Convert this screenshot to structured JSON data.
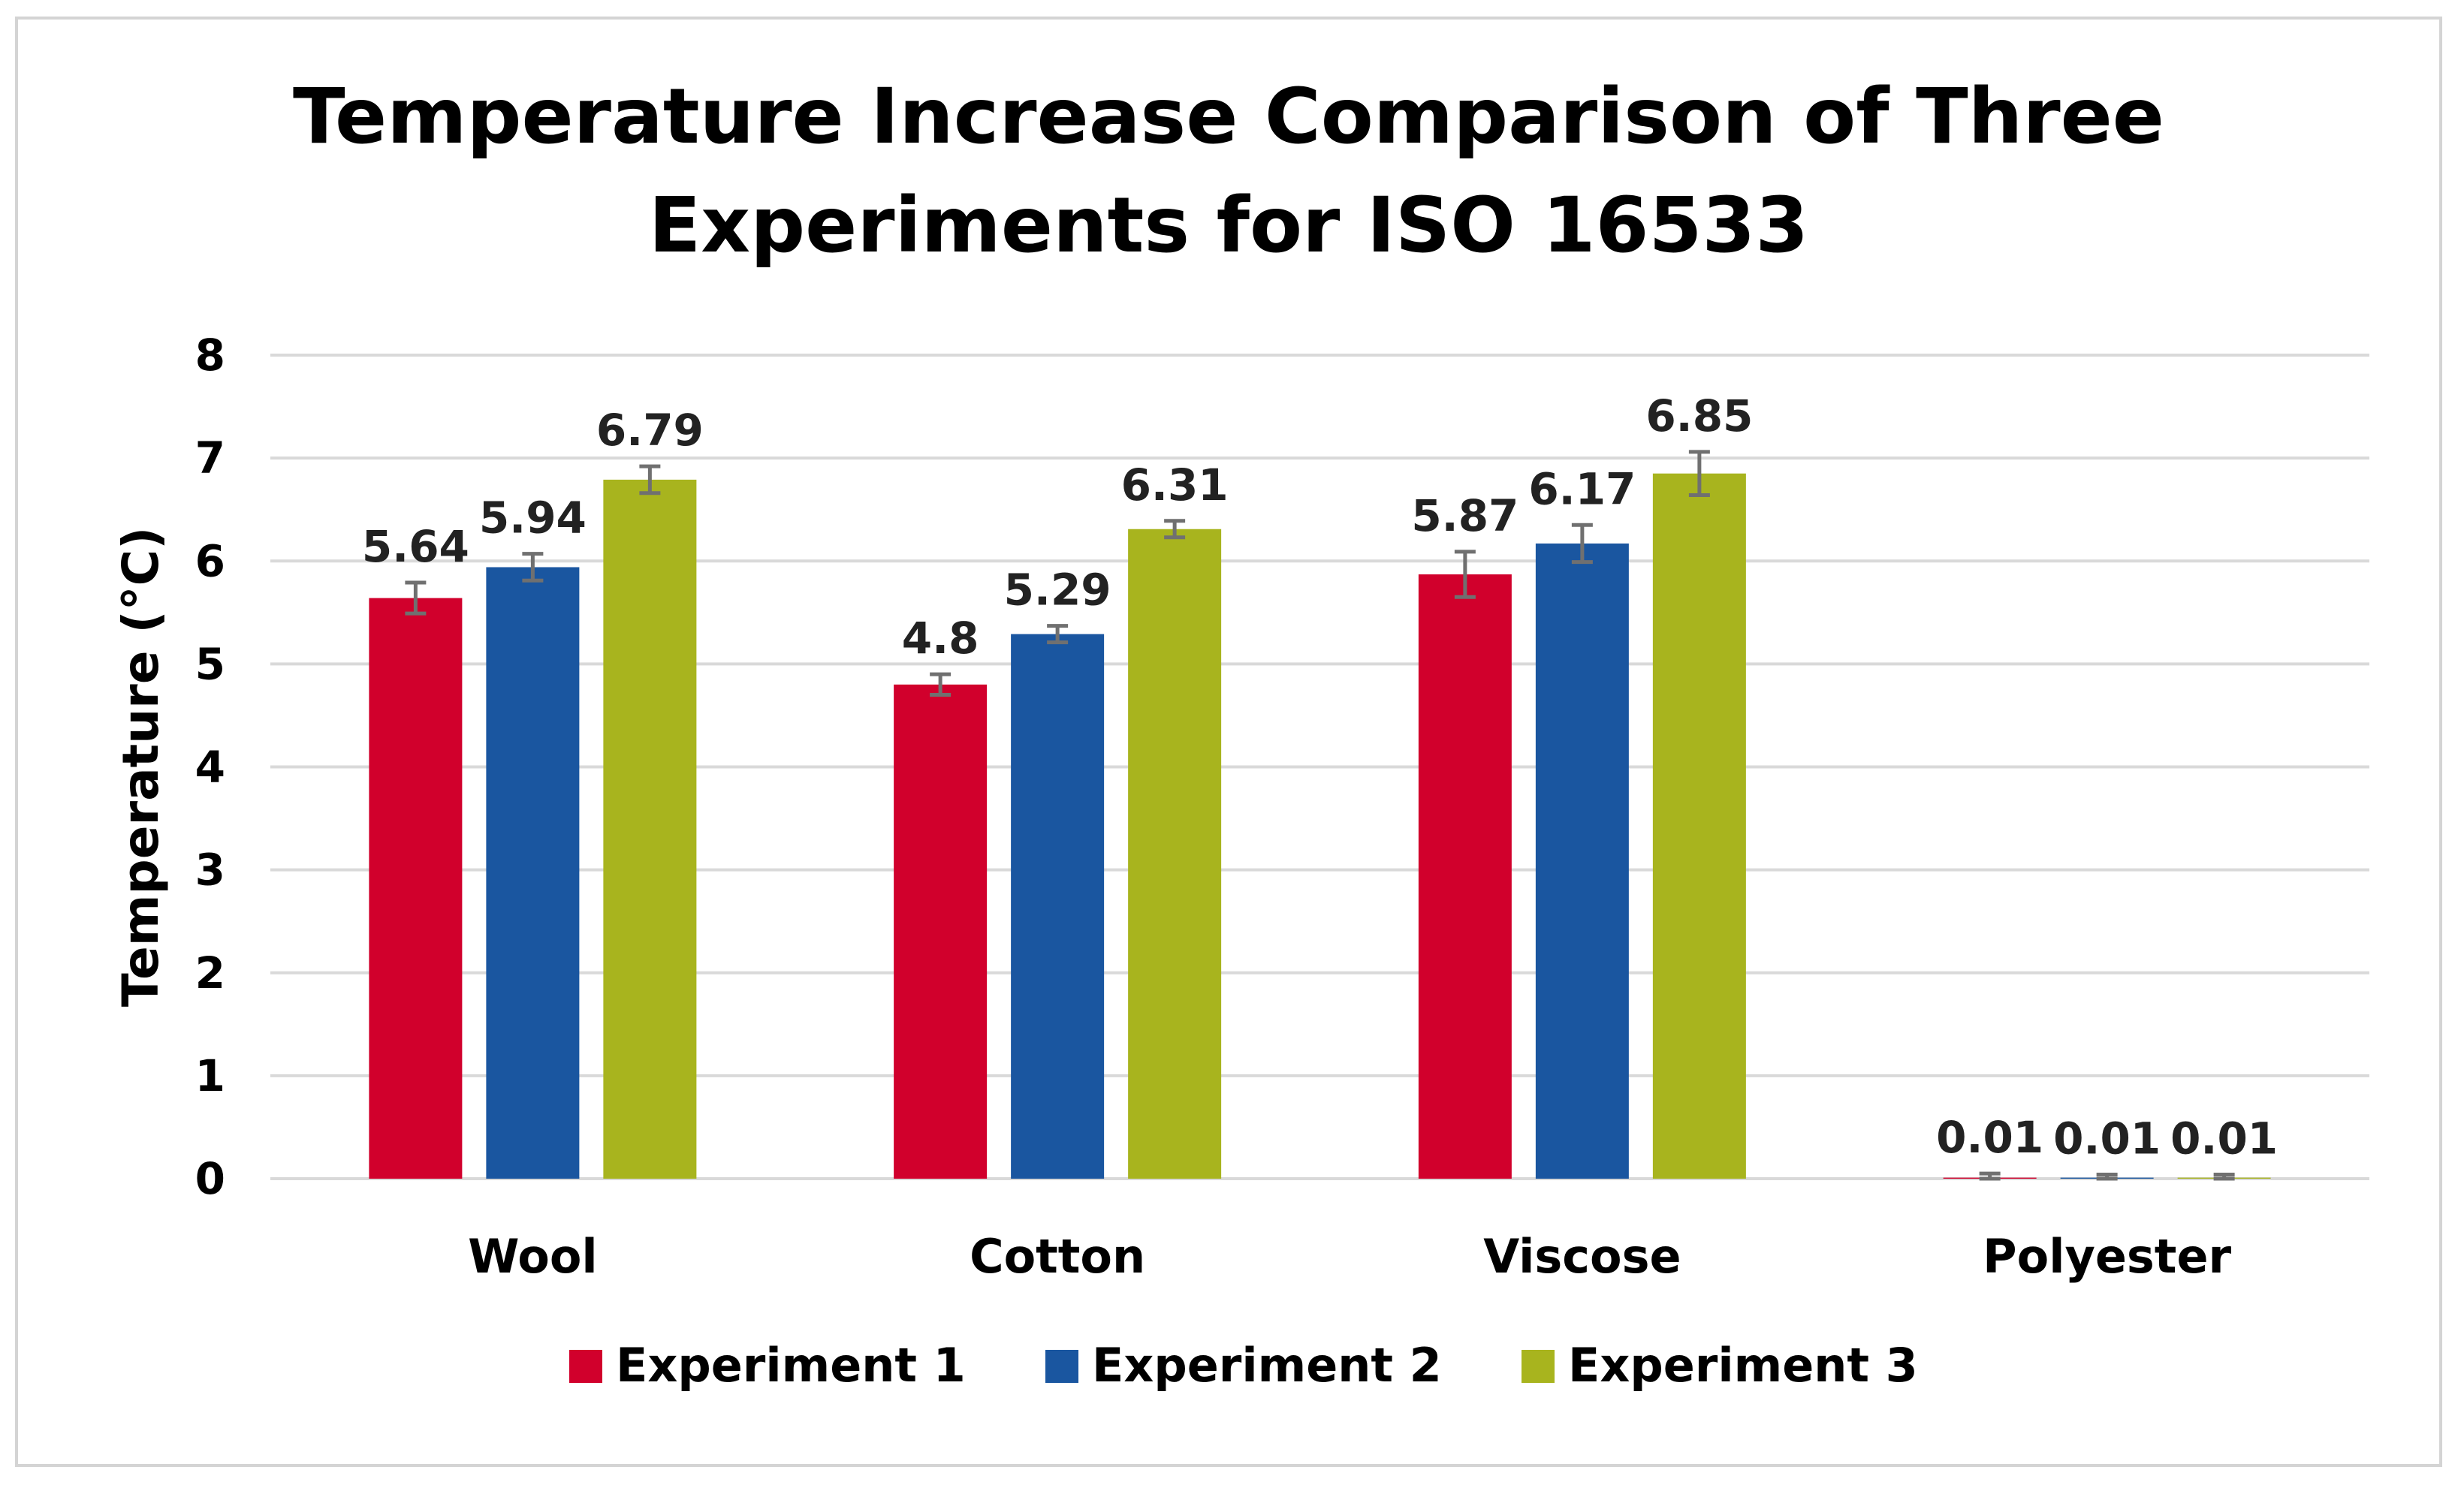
{
  "chart_data": {
    "type": "bar",
    "title": "Temperature Increase Comparison of Three Experiments for ISO 16533",
    "title_lines": [
      "Temperature Increase Comparison of Three",
      "Experiments for ISO 16533"
    ],
    "xlabel": "",
    "ylabel": "Temperature (°C)",
    "ylim": [
      0,
      8
    ],
    "yticks": [
      0,
      1,
      2,
      3,
      4,
      5,
      6,
      7,
      8
    ],
    "grid": true,
    "legend_position": "bottom",
    "categories": [
      "Wool",
      "Cotton",
      "Viscose",
      "Polyester"
    ],
    "series": [
      {
        "name": "Experiment 1",
        "color": "#d1002c",
        "values": [
          5.64,
          4.8,
          5.87,
          0.01
        ],
        "labels": [
          "5.64",
          "4.8",
          "5.87",
          "0.01"
        ],
        "errors": [
          0.15,
          0.1,
          0.22,
          0.04
        ]
      },
      {
        "name": "Experiment 2",
        "color": "#1a56a0",
        "values": [
          5.94,
          5.29,
          6.17,
          0.01
        ],
        "labels": [
          "5.94",
          "5.29",
          "6.17",
          "0.01"
        ],
        "errors": [
          0.13,
          0.08,
          0.18,
          0.03
        ]
      },
      {
        "name": "Experiment 3",
        "color": "#a8b41e",
        "values": [
          6.79,
          6.31,
          6.85,
          0.01
        ],
        "labels": [
          "6.79",
          "6.31",
          "6.85",
          "0.01"
        ],
        "errors": [
          0.13,
          0.08,
          0.21,
          0.03
        ]
      }
    ],
    "error_bar_color": "#707070",
    "grid_color": "#d9d9d9"
  }
}
